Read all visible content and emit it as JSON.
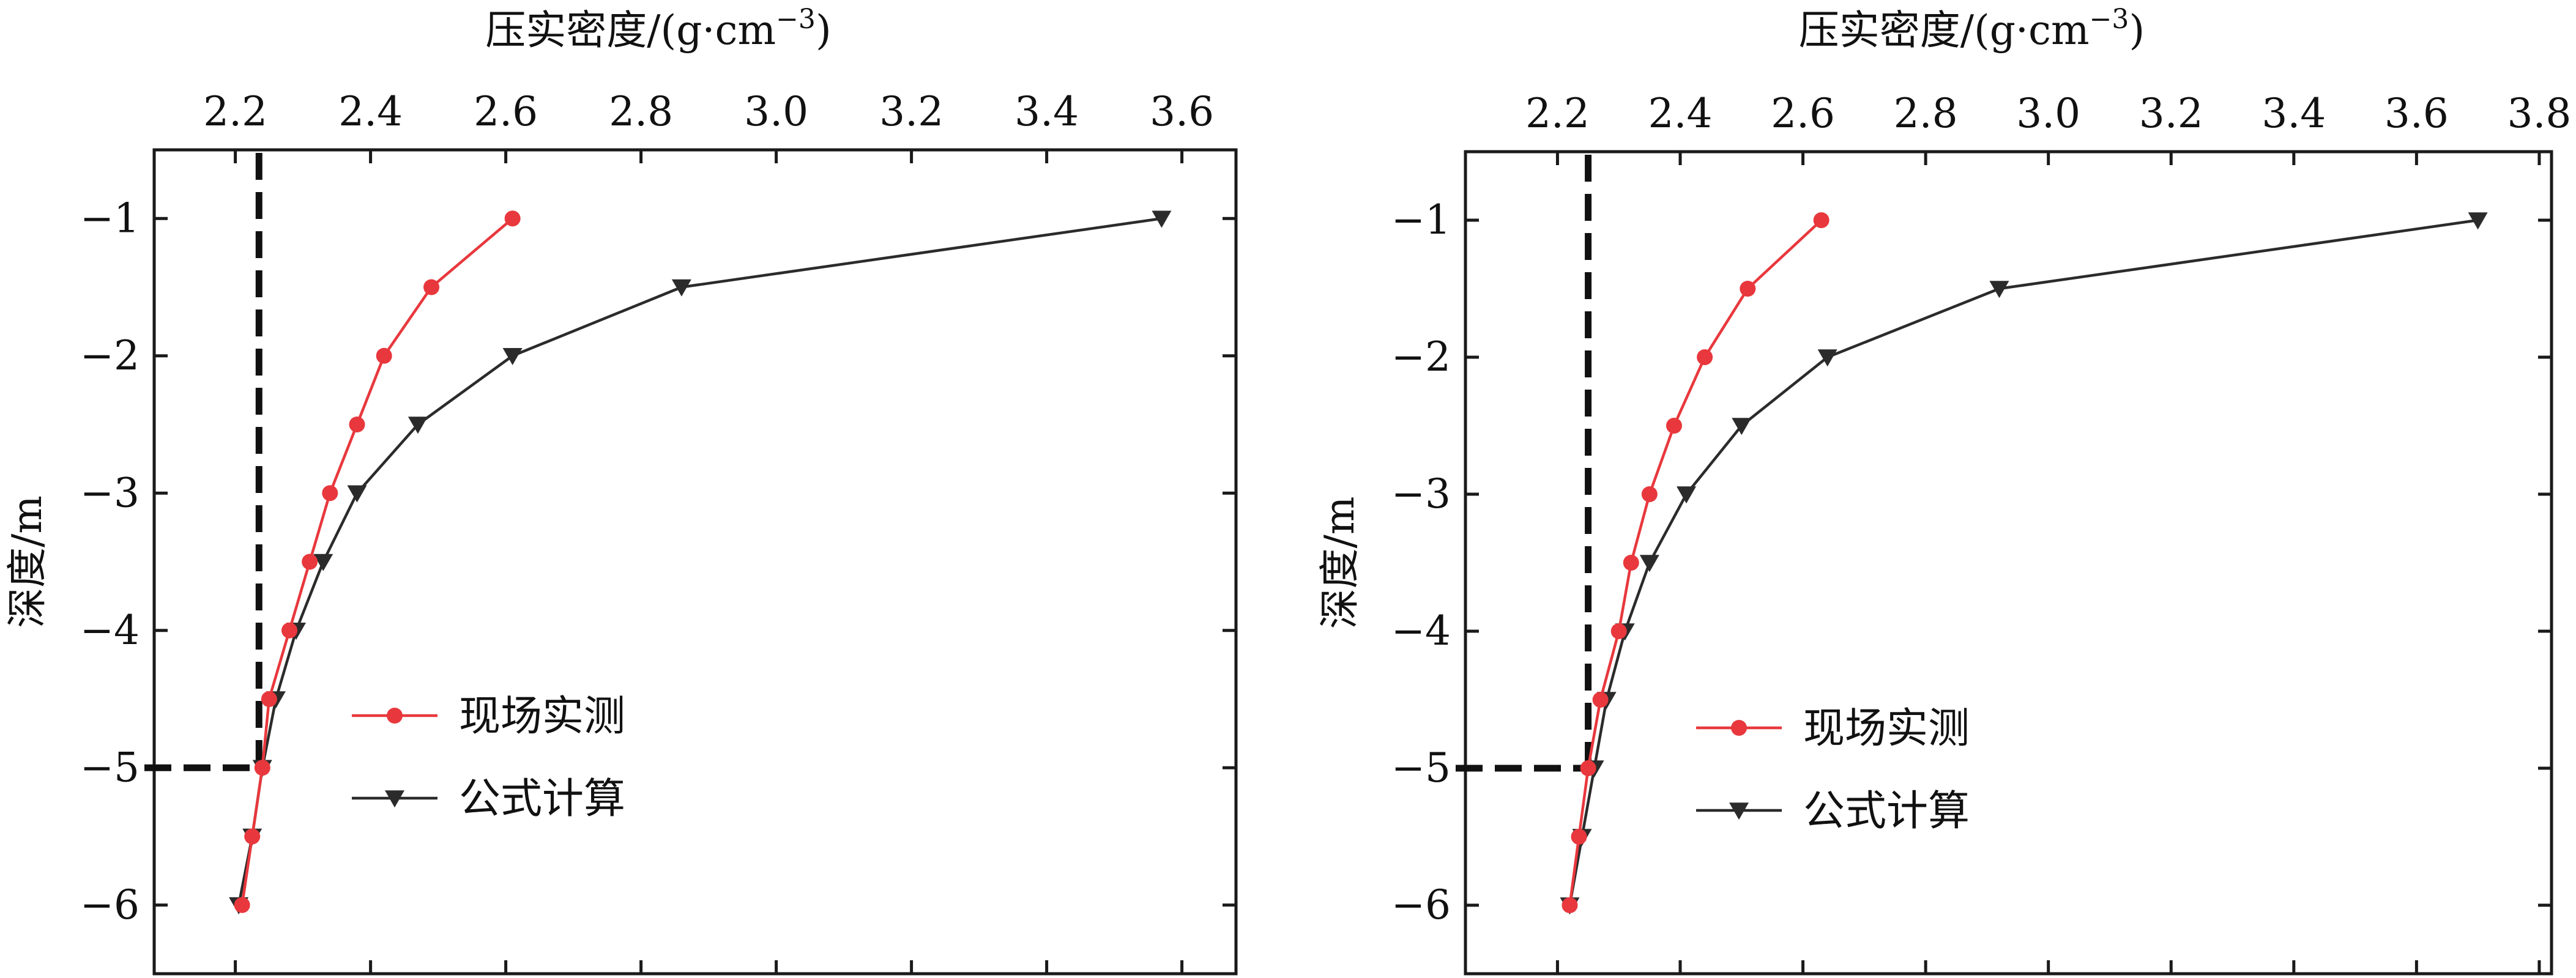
{
  "chart_data": [
    {
      "type": "line",
      "x_axis_position": "top",
      "xlabel_parts": {
        "main": "压实密度/(g·cm",
        "sup": "−3",
        "end": ")"
      },
      "ylabel": "深度/m",
      "xlim": [
        2.08,
        3.68
      ],
      "ylim": [
        -6.5,
        -0.5
      ],
      "xticks": [
        2.2,
        2.4,
        2.6,
        2.8,
        3.0,
        3.2,
        3.4,
        3.6
      ],
      "xtick_labels": [
        "2.2",
        "2.4",
        "2.6",
        "2.8",
        "3.0",
        "3.2",
        "3.4",
        "3.6"
      ],
      "yticks": [
        -1,
        -2,
        -3,
        -4,
        -5,
        -6
      ],
      "ytick_labels": [
        "−1",
        "−2",
        "−3",
        "−4",
        "−5",
        "−6"
      ],
      "grid": false,
      "legend_position": "lower-center",
      "series": [
        {
          "name": "现场实测",
          "color": "#e8383d",
          "marker": "circle",
          "x": [
            2.61,
            2.49,
            2.42,
            2.38,
            2.34,
            2.31,
            2.28,
            2.25,
            2.24,
            2.225,
            2.21
          ],
          "y": [
            -1,
            -1.5,
            -2,
            -2.5,
            -3,
            -3.5,
            -4,
            -4.5,
            -5,
            -5.5,
            -6
          ]
        },
        {
          "name": "公式计算",
          "color": "#2b2b2b",
          "marker": "triangle-down",
          "x": [
            3.57,
            2.86,
            2.61,
            2.47,
            2.38,
            2.33,
            2.29,
            2.26,
            2.24,
            2.225,
            2.205
          ],
          "y": [
            -1,
            -1.5,
            -2,
            -2.5,
            -3,
            -3.5,
            -4,
            -4.5,
            -5,
            -5.5,
            -6
          ]
        }
      ],
      "reference_lines": {
        "vertical_x": 2.235,
        "horizontal_y": -5
      }
    },
    {
      "type": "line",
      "x_axis_position": "top",
      "xlabel_parts": {
        "main": "压实密度/(g·cm",
        "sup": "−3",
        "end": ")"
      },
      "ylabel": "深度/m",
      "xlim": [
        2.05,
        3.82
      ],
      "ylim": [
        -6.5,
        -0.5
      ],
      "xticks": [
        2.2,
        2.4,
        2.6,
        2.8,
        3.0,
        3.2,
        3.4,
        3.6,
        3.8
      ],
      "xtick_labels": [
        "2.2",
        "2.4",
        "2.6",
        "2.8",
        "3.0",
        "3.2",
        "3.4",
        "3.6",
        "3.8"
      ],
      "yticks": [
        -1,
        -2,
        -3,
        -4,
        -5,
        -6
      ],
      "ytick_labels": [
        "−1",
        "−2",
        "−3",
        "−4",
        "−5",
        "−6"
      ],
      "grid": false,
      "legend_position": "lower-center",
      "series": [
        {
          "name": "现场实测",
          "color": "#e8383d",
          "marker": "circle",
          "x": [
            2.63,
            2.51,
            2.44,
            2.39,
            2.35,
            2.32,
            2.3,
            2.27,
            2.25,
            2.235,
            2.22
          ],
          "y": [
            -1,
            -1.5,
            -2,
            -2.5,
            -3,
            -3.5,
            -4,
            -4.5,
            -5,
            -5.5,
            -6
          ]
        },
        {
          "name": "公式计算",
          "color": "#2b2b2b",
          "marker": "triangle-down",
          "x": [
            3.7,
            2.92,
            2.64,
            2.5,
            2.41,
            2.35,
            2.31,
            2.28,
            2.26,
            2.24,
            2.22
          ],
          "y": [
            -1,
            -1.5,
            -2,
            -2.5,
            -3,
            -3.5,
            -4,
            -4.5,
            -5,
            -5.5,
            -6
          ]
        }
      ],
      "reference_lines": {
        "vertical_x": 2.25,
        "horizontal_y": -5
      }
    }
  ]
}
